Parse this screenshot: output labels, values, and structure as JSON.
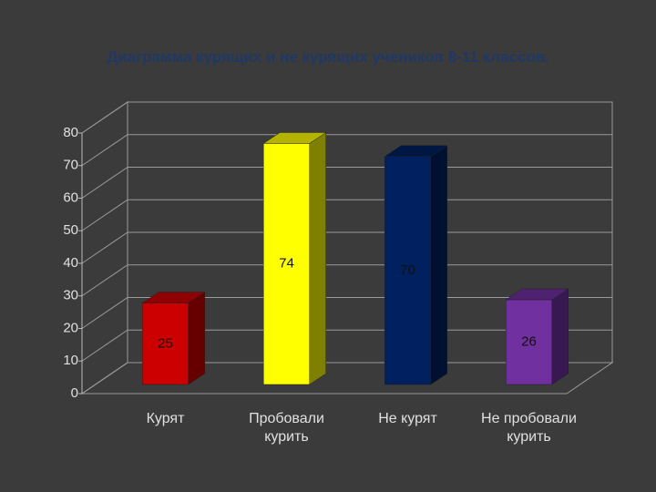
{
  "chart_data": {
    "type": "bar3d",
    "title": "Диаграмма курящих и не курящих учеников 8-11 классов.",
    "categories": [
      "Курят",
      "Пробовали курить",
      "Не курят",
      "Не пробовали курить"
    ],
    "values": [
      25,
      74,
      70,
      26
    ],
    "colors": [
      "#cc0000",
      "#ffff00",
      "#002060",
      "#7030a0"
    ],
    "ylim": [
      0,
      80
    ],
    "yticks": [
      0,
      10,
      20,
      30,
      40,
      50,
      60,
      70,
      80
    ],
    "grid": true
  }
}
